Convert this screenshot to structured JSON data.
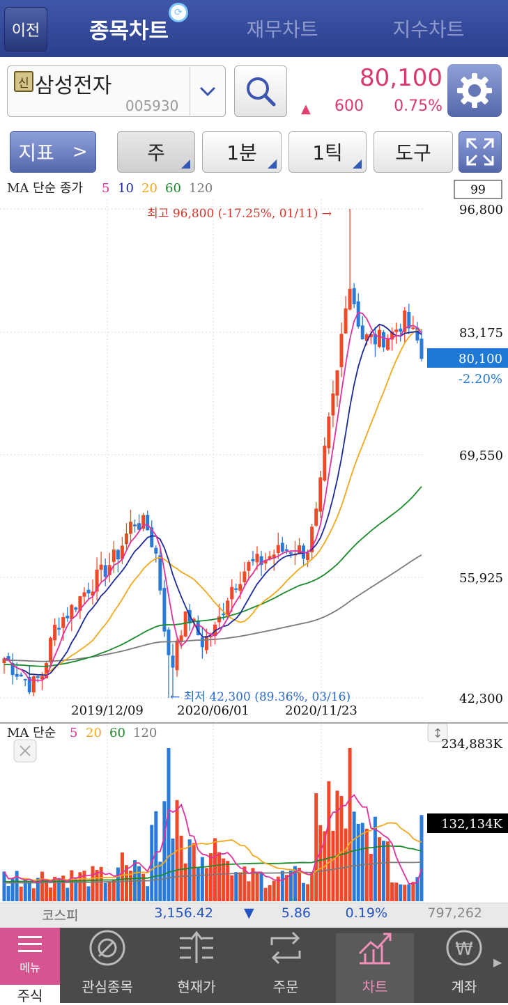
{
  "header": {
    "back_label": "이전",
    "tabs": [
      {
        "label": "종목차트",
        "active": true
      },
      {
        "label": "재무차트",
        "active": false
      },
      {
        "label": "지수차트",
        "active": false
      }
    ]
  },
  "stock": {
    "badge": "신",
    "name": "삼성전자",
    "code": "005930",
    "price": "80,100",
    "change": "600",
    "change_pct": "0.75%",
    "change_direction": "up"
  },
  "toolbar": {
    "indicator_label": "지표",
    "indicator_arrow": ">",
    "period_week": "주",
    "period_min": "1분",
    "period_tick": "1틱",
    "tools_label": "도구"
  },
  "chart": {
    "price_legend_title": "MA 단순 종가",
    "price_ma_periods": [
      "5",
      "10",
      "20",
      "60",
      "120"
    ],
    "ma_colors": {
      "5": "#e0319c",
      "10": "#1a2a9c",
      "20": "#f2a81b",
      "60": "#1a8a2c",
      "120": "#7a7a7a"
    },
    "count_box": "99",
    "y_labels": [
      "96,800",
      "83,175",
      "69,550",
      "55,925",
      "42,300"
    ],
    "current_price_label": "80,100",
    "current_pct_label": "-2.20%",
    "high_annotation": "최고 96,800 (-17.25%, 01/11) →",
    "low_annotation": "← 최저 42,300 (89.36%, 03/16)",
    "x_labels": [
      "2019/12/09",
      "2020/06/01",
      "2020/11/23"
    ],
    "volume_legend_title": "MA 단순",
    "volume_ma_periods": [
      "5",
      "20",
      "60",
      "120"
    ],
    "volume_top_label": "234,883K",
    "volume_current_label": "132,134K",
    "up_color": "#ee4a2a",
    "down_color": "#2a7ad8"
  },
  "chart_data": {
    "type": "candlestick",
    "y_range": [
      42300,
      96800
    ],
    "x_ticks": [
      "2019/12/09",
      "2020/06/01",
      "2020/11/23"
    ],
    "high": {
      "value": 96800,
      "pct": "-17.25%",
      "date": "01/11"
    },
    "low": {
      "value": 42300,
      "pct": "89.36%",
      "date": "03/16"
    },
    "last_close": 80100,
    "volume_max": "234,883K",
    "volume_last": "132,134K"
  },
  "index_bar": {
    "name": "코스피",
    "value": "3,156.42",
    "direction": "down",
    "change": "5.86",
    "pct": "0.19%",
    "volume": "797,262"
  },
  "nav": [
    {
      "label": "주식",
      "sub": "메뉴"
    },
    {
      "label": "관심종목"
    },
    {
      "label": "현재가"
    },
    {
      "label": "주문"
    },
    {
      "label": "차트"
    },
    {
      "label": "계좌"
    }
  ]
}
